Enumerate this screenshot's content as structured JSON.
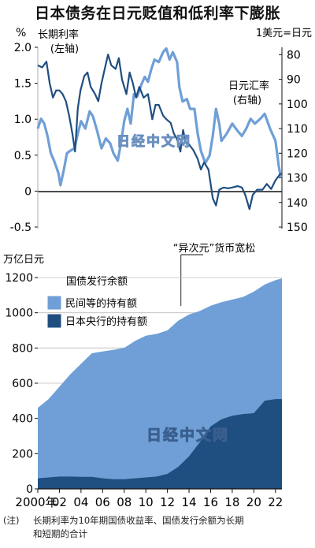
{
  "title": "日本债务在日元贬值和低利率下膨胀",
  "note": {
    "tag": "(注)",
    "line1": "长期利率为10年期国债收益率、国债发行余额为长期",
    "line2": "和短期的合计"
  },
  "watermark": "日经中文网",
  "chart_data": [
    {
      "type": "line",
      "left_unit": "%",
      "right_unit": "1美元=日元",
      "yticks_left": [
        "2.0",
        "1.5",
        "1.0",
        "0.5",
        "0",
        "-0.5"
      ],
      "yticks_right": [
        "80",
        "90",
        "100",
        "110",
        "120",
        "130",
        "140",
        "150"
      ],
      "ylim_left": [
        -0.5,
        2.0
      ],
      "ylim_right": [
        150,
        77
      ],
      "right_axis_inverted": true,
      "x_range": [
        2000,
        2022.6
      ],
      "series": [
        {
          "name": "长期利率",
          "axis_note": "(左轴)",
          "axis": "left",
          "color": "#1f4e80",
          "points": [
            [
              2000,
              1.75
            ],
            [
              2000.4,
              1.72
            ],
            [
              2000.8,
              1.8
            ],
            [
              2001.1,
              1.5
            ],
            [
              2001.4,
              1.3
            ],
            [
              2001.7,
              1.4
            ],
            [
              2002,
              1.4
            ],
            [
              2002.3,
              1.35
            ],
            [
              2002.6,
              1.25
            ],
            [
              2002.9,
              1.05
            ],
            [
              2003.2,
              0.8
            ],
            [
              2003.45,
              0.55
            ],
            [
              2003.7,
              1.15
            ],
            [
              2003.95,
              1.4
            ],
            [
              2004.3,
              1.6
            ],
            [
              2004.6,
              1.65
            ],
            [
              2004.9,
              1.45
            ],
            [
              2005.3,
              1.35
            ],
            [
              2005.6,
              1.25
            ],
            [
              2005.9,
              1.5
            ],
            [
              2006.2,
              1.7
            ],
            [
              2006.5,
              1.9
            ],
            [
              2006.8,
              1.75
            ],
            [
              2007.2,
              1.7
            ],
            [
              2007.5,
              1.85
            ],
            [
              2007.8,
              1.55
            ],
            [
              2008.2,
              1.35
            ],
            [
              2008.5,
              1.65
            ],
            [
              2008.8,
              1.5
            ],
            [
              2009.1,
              1.3
            ],
            [
              2009.4,
              1.45
            ],
            [
              2009.8,
              1.3
            ],
            [
              2010.2,
              1.35
            ],
            [
              2010.6,
              1.0
            ],
            [
              2010.9,
              1.2
            ],
            [
              2011.2,
              1.2
            ],
            [
              2011.6,
              1.05
            ],
            [
              2011.9,
              1.0
            ],
            [
              2012.3,
              0.95
            ],
            [
              2012.6,
              0.8
            ],
            [
              2012.9,
              0.72
            ],
            [
              2013.2,
              0.55
            ],
            [
              2013.45,
              0.85
            ],
            [
              2013.7,
              0.68
            ],
            [
              2014,
              0.65
            ],
            [
              2014.4,
              0.57
            ],
            [
              2014.8,
              0.45
            ],
            [
              2015.1,
              0.3
            ],
            [
              2015.4,
              0.4
            ],
            [
              2015.8,
              0.3
            ],
            [
              2016,
              0.1
            ],
            [
              2016.2,
              -0.1
            ],
            [
              2016.5,
              -0.2
            ],
            [
              2016.8,
              0.02
            ],
            [
              2017.2,
              0.05
            ],
            [
              2017.6,
              0.04
            ],
            [
              2018,
              0.05
            ],
            [
              2018.5,
              0.07
            ],
            [
              2018.9,
              0.05
            ],
            [
              2019.2,
              -0.05
            ],
            [
              2019.6,
              -0.25
            ],
            [
              2019.9,
              -0.05
            ],
            [
              2020.3,
              0.02
            ],
            [
              2020.8,
              0.02
            ],
            [
              2021.2,
              0.1
            ],
            [
              2021.6,
              0.03
            ],
            [
              2022,
              0.15
            ],
            [
              2022.5,
              0.25
            ]
          ]
        },
        {
          "name": "日元汇率",
          "axis_note": "(右轴)",
          "axis": "right",
          "color": "#6f9fd6",
          "points": [
            [
              2000,
              110
            ],
            [
              2000.3,
              106
            ],
            [
              2000.6,
              108
            ],
            [
              2000.9,
              113
            ],
            [
              2001.2,
              120
            ],
            [
              2001.5,
              123
            ],
            [
              2001.9,
              128
            ],
            [
              2002.1,
              133
            ],
            [
              2002.4,
              127
            ],
            [
              2002.7,
              120
            ],
            [
              2003,
              119
            ],
            [
              2003.4,
              118
            ],
            [
              2003.7,
              112
            ],
            [
              2004,
              107
            ],
            [
              2004.4,
              110
            ],
            [
              2004.8,
              103
            ],
            [
              2005.1,
              105
            ],
            [
              2005.5,
              111
            ],
            [
              2005.9,
              118
            ],
            [
              2006.3,
              114
            ],
            [
              2006.7,
              116
            ],
            [
              2007,
              120
            ],
            [
              2007.4,
              123
            ],
            [
              2007.7,
              116
            ],
            [
              2008,
              107
            ],
            [
              2008.3,
              102
            ],
            [
              2008.6,
              108
            ],
            [
              2008.9,
              96
            ],
            [
              2009.2,
              97
            ],
            [
              2009.6,
              92
            ],
            [
              2009.9,
              89
            ],
            [
              2010.2,
              91
            ],
            [
              2010.5,
              86
            ],
            [
              2010.8,
              82
            ],
            [
              2011.2,
              83
            ],
            [
              2011.6,
              79
            ],
            [
              2011.9,
              77.5
            ],
            [
              2012.2,
              82
            ],
            [
              2012.5,
              79
            ],
            [
              2012.9,
              83
            ],
            [
              2013.1,
              93
            ],
            [
              2013.4,
              99
            ],
            [
              2013.8,
              98
            ],
            [
              2014.1,
              102
            ],
            [
              2014.5,
              102
            ],
            [
              2014.8,
              112
            ],
            [
              2015.1,
              119
            ],
            [
              2015.5,
              124
            ],
            [
              2015.9,
              121
            ],
            [
              2016.2,
              113
            ],
            [
              2016.5,
              102
            ],
            [
              2016.8,
              108
            ],
            [
              2017,
              115
            ],
            [
              2017.5,
              112
            ],
            [
              2018,
              108
            ],
            [
              2018.5,
              111
            ],
            [
              2018.9,
              113
            ],
            [
              2019.3,
              110
            ],
            [
              2019.7,
              106
            ],
            [
              2020.1,
              108
            ],
            [
              2020.6,
              106
            ],
            [
              2021,
              104
            ],
            [
              2021.5,
              110
            ],
            [
              2022,
              115
            ],
            [
              2022.3,
              125
            ],
            [
              2022.5,
              130
            ]
          ]
        }
      ]
    },
    {
      "type": "area",
      "title": "国债发行余额",
      "ylabel": "万亿日元",
      "ylim": [
        0,
        1200
      ],
      "yticks": [
        "0",
        "200",
        "400",
        "600",
        "800",
        "1000",
        "1200"
      ],
      "xticks": [
        "2000年",
        "02",
        "04",
        "06",
        "08",
        "10",
        "12",
        "14",
        "16",
        "18",
        "20",
        "22"
      ],
      "x_range": [
        2000,
        2022.6
      ],
      "annotation": "“异次元”货币宽松",
      "annotation_x": 2013.25,
      "stacked": true,
      "series": [
        {
          "name": "民间等的持有额",
          "color": "#6f9fd6",
          "total_points": [
            [
              2000,
              460
            ],
            [
              2001,
              510
            ],
            [
              2002,
              580
            ],
            [
              2003,
              650
            ],
            [
              2004,
              710
            ],
            [
              2005,
              770
            ],
            [
              2006,
              780
            ],
            [
              2007,
              790
            ],
            [
              2008,
              800
            ],
            [
              2009,
              840
            ],
            [
              2010,
              870
            ],
            [
              2011,
              880
            ],
            [
              2012,
              900
            ],
            [
              2013,
              955
            ],
            [
              2014,
              990
            ],
            [
              2015,
              1010
            ],
            [
              2016,
              1040
            ],
            [
              2017,
              1060
            ],
            [
              2018,
              1075
            ],
            [
              2019,
              1090
            ],
            [
              2020,
              1120
            ],
            [
              2021,
              1160
            ],
            [
              2022,
              1185
            ],
            [
              2022.6,
              1195
            ]
          ]
        },
        {
          "name": "日本央行的持有额",
          "color": "#1f4e80",
          "points": [
            [
              2000,
              60
            ],
            [
              2001,
              65
            ],
            [
              2002,
              70
            ],
            [
              2003,
              70
            ],
            [
              2004,
              68
            ],
            [
              2005,
              68
            ],
            [
              2006,
              60
            ],
            [
              2007,
              55
            ],
            [
              2008,
              55
            ],
            [
              2009,
              60
            ],
            [
              2010,
              65
            ],
            [
              2011,
              70
            ],
            [
              2012,
              85
            ],
            [
              2013,
              125
            ],
            [
              2014,
              185
            ],
            [
              2015,
              265
            ],
            [
              2016,
              355
            ],
            [
              2017,
              395
            ],
            [
              2018,
              415
            ],
            [
              2019,
              425
            ],
            [
              2020,
              430
            ],
            [
              2021,
              500
            ],
            [
              2022,
              510
            ],
            [
              2022.6,
              510
            ]
          ]
        }
      ]
    }
  ]
}
